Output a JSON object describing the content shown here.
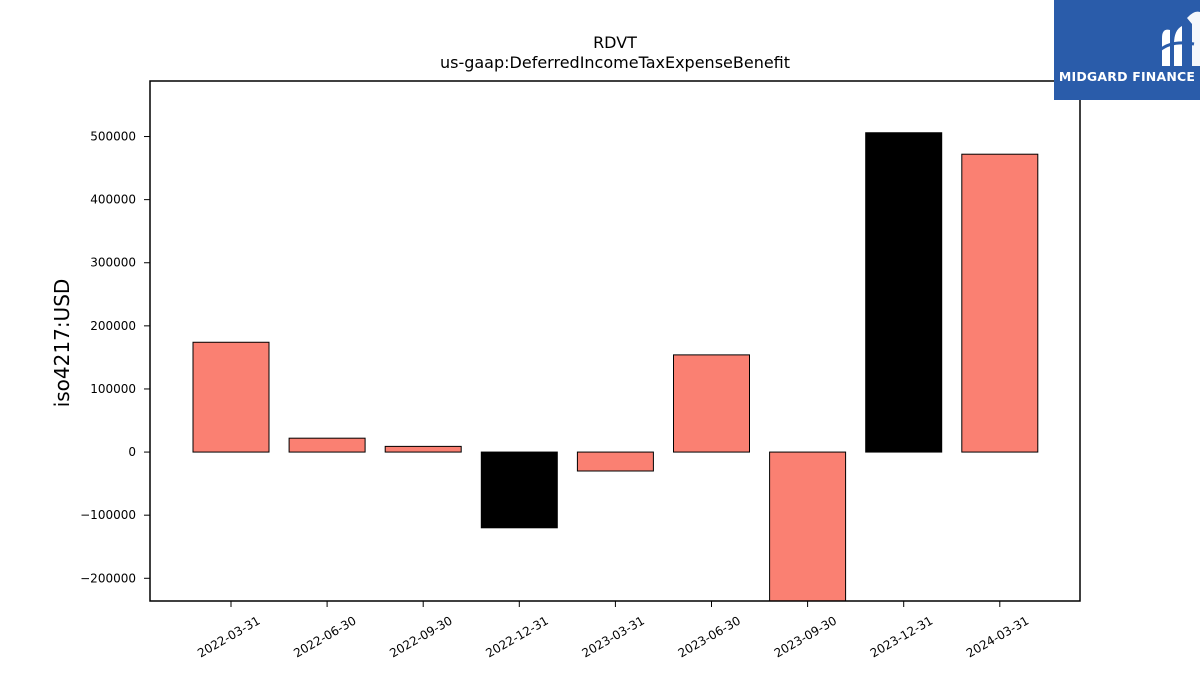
{
  "chart_data": {
    "type": "bar",
    "title": "RDVT",
    "subtitle": "us-gaap:DeferredIncomeTaxExpenseBenefit",
    "xlabel": "",
    "ylabel": "iso4217:USD",
    "categories": [
      "2022-03-31",
      "2022-06-30",
      "2022-09-30",
      "2022-12-31",
      "2023-03-31",
      "2023-06-30",
      "2023-09-30",
      "2023-12-31",
      "2024-03-31"
    ],
    "values": [
      174000,
      22000,
      9000,
      -120000,
      -30000,
      154000,
      -236000,
      506000,
      472000
    ],
    "bar_colors": [
      "#fa8072",
      "#fa8072",
      "#fa8072",
      "#000000",
      "#fa8072",
      "#fa8072",
      "#fa8072",
      "#000000",
      "#fa8072"
    ],
    "ylim": [
      -236000,
      588000
    ],
    "yticks": [
      -200000,
      -100000,
      0,
      100000,
      200000,
      300000,
      400000,
      500000
    ],
    "ytick_labels": [
      "−200000",
      "−100000",
      "0",
      "100000",
      "200000",
      "300000",
      "400000",
      "500000"
    ],
    "grid": false,
    "legend": "none"
  },
  "logo": {
    "name": "MIDGARD FINANCE",
    "background": "#2a5caa",
    "icon": "midgard-m-logo-icon"
  }
}
